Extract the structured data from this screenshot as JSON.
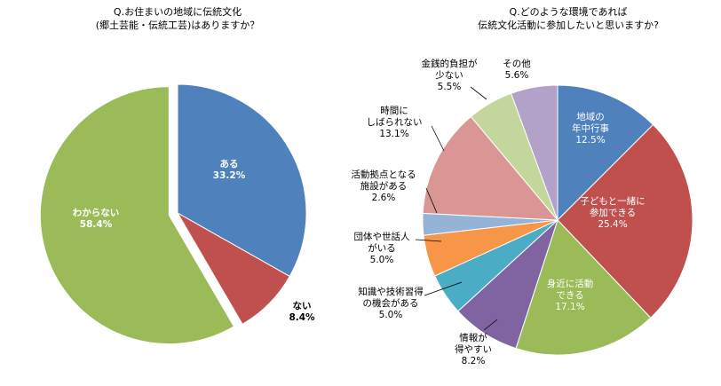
{
  "chart_data": [
    {
      "type": "pie",
      "title_lines": [
        "Q.お住まいの地域に伝統文化",
        "(郷土芸能・伝統工芸)はありますか？"
      ],
      "slices": [
        {
          "label_lines": [
            "ある"
          ],
          "value": 33.2,
          "value_label": "33.2%",
          "color": "#4F81BD"
        },
        {
          "label_lines": [
            "ない"
          ],
          "value": 8.4,
          "value_label": "8.4%",
          "color": "#C0504D"
        },
        {
          "label_lines": [
            "わからない"
          ],
          "value": 58.4,
          "value_label": "58.4%",
          "color": "#9BBB59",
          "exploded": true
        }
      ]
    },
    {
      "type": "pie",
      "title_lines": [
        "Q.どのような環境であれば",
        "伝統文化活動に参加したいと思いますか?"
      ],
      "slices": [
        {
          "label_lines": [
            "地域の",
            "年中行事"
          ],
          "value": 12.5,
          "value_label": "12.5%",
          "color": "#4F81BD"
        },
        {
          "label_lines": [
            "子どもと一緒に",
            "参加できる"
          ],
          "value": 25.4,
          "value_label": "25.4%",
          "color": "#C0504D"
        },
        {
          "label_lines": [
            "身近に活動",
            "できる"
          ],
          "value": 17.1,
          "value_label": "17.1%",
          "color": "#9BBB59"
        },
        {
          "label_lines": [
            "情報が",
            "得やすい"
          ],
          "value": 8.2,
          "value_label": "8.2%",
          "color": "#8064A2"
        },
        {
          "label_lines": [
            "知識や技術習得",
            "の機会がある"
          ],
          "value": 5.0,
          "value_label": "5.0%",
          "color": "#4BACC6"
        },
        {
          "label_lines": [
            "団体や世話人",
            "がいる"
          ],
          "value": 5.0,
          "value_label": "5.0%",
          "color": "#F79646"
        },
        {
          "label_lines": [
            "活動拠点となる",
            "施設がある"
          ],
          "value": 2.6,
          "value_label": "2.6%",
          "color": "#95B3D7"
        },
        {
          "label_lines": [
            "時間に",
            "しばられない"
          ],
          "value": 13.1,
          "value_label": "13.1%",
          "color": "#D99694"
        },
        {
          "label_lines": [
            "金銭的負担が",
            "少ない"
          ],
          "value": 5.5,
          "value_label": "5.5%",
          "color": "#C3D69B"
        },
        {
          "label_lines": [
            "その他"
          ],
          "value": 5.6,
          "value_label": "5.6%",
          "color": "#B2A2C7"
        }
      ]
    }
  ]
}
